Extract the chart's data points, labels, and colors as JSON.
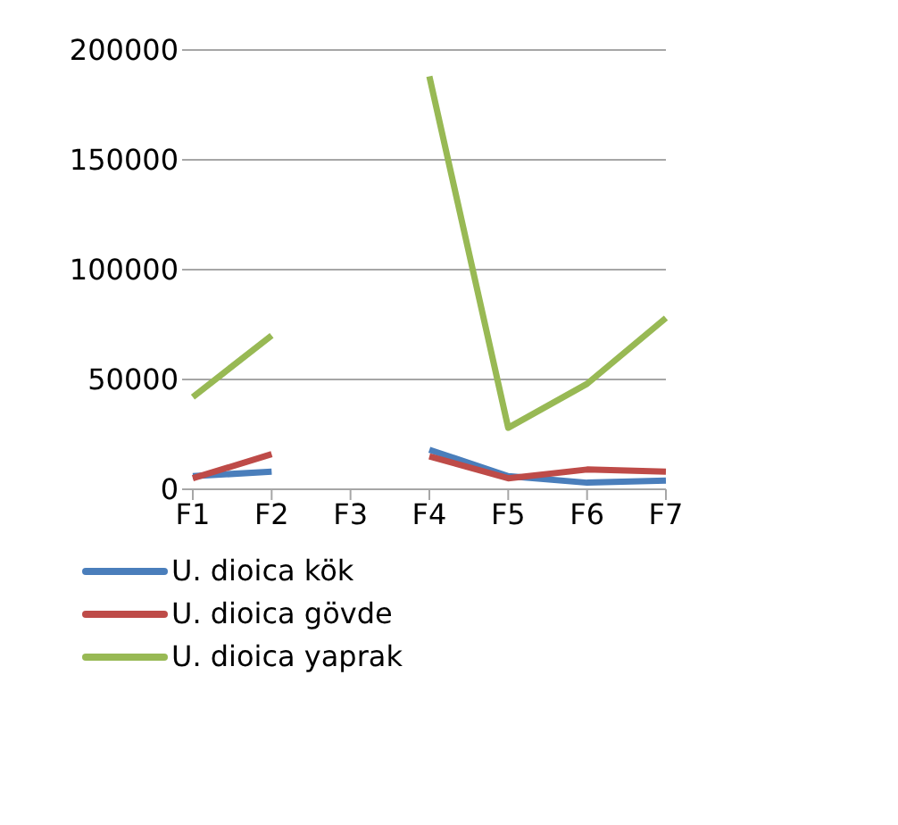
{
  "chart_data": {
    "type": "line",
    "categories": [
      "F1",
      "F2",
      "F3",
      "F4",
      "F5",
      "F6",
      "F7"
    ],
    "series": [
      {
        "name": "U. dioica kök",
        "color": "#4a7ebb",
        "values": [
          6000,
          8000,
          null,
          18000,
          6000,
          3000,
          4000
        ]
      },
      {
        "name": "U. dioica gövde",
        "color": "#be4b48",
        "values": [
          5000,
          16000,
          null,
          15000,
          5000,
          9000,
          8000
        ]
      },
      {
        "name": "U. dioica yaprak",
        "color": "#98b954",
        "values": [
          42000,
          70000,
          null,
          188000,
          28000,
          48000,
          78000
        ]
      }
    ],
    "ylim": [
      0,
      200000
    ],
    "yticks": [
      0,
      50000,
      100000,
      150000,
      200000
    ],
    "grid": "y",
    "legend": "bottom",
    "marker": "none",
    "line_style": "solid"
  }
}
